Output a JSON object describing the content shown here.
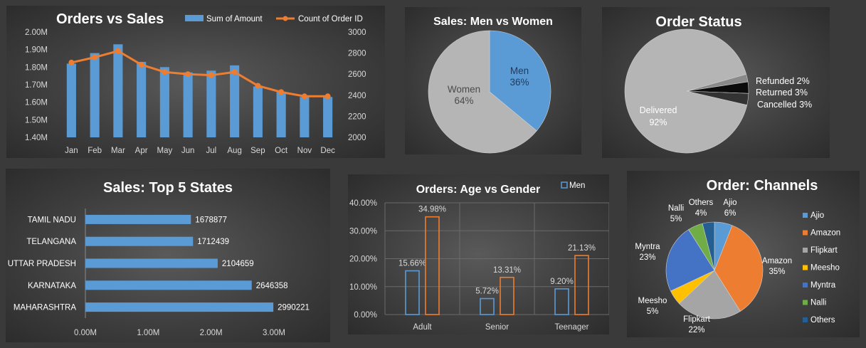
{
  "colors": {
    "blue": "#5b9bd5",
    "orange": "#ed7d31",
    "gray": "#a5a5a5",
    "yellow": "#ffc000",
    "royal": "#4472c4",
    "green": "#70ad47",
    "navy": "#255e91",
    "text": "#ffffff",
    "axis": "#d9d9d9",
    "grid": "#6a6a6a"
  },
  "chart_data": [
    {
      "id": "orders-vs-sales",
      "type": "bar",
      "title": "Orders vs Sales",
      "categories": [
        "Jan",
        "Feb",
        "Mar",
        "Apr",
        "May",
        "Jun",
        "Jul",
        "Aug",
        "Sep",
        "Oct",
        "Nov",
        "Dec"
      ],
      "series": [
        {
          "name": "Sum of Amount",
          "kind": "bar",
          "axis": "left",
          "values": [
            1.82,
            1.88,
            1.93,
            1.83,
            1.8,
            1.77,
            1.78,
            1.81,
            1.69,
            1.66,
            1.63,
            1.63
          ]
        },
        {
          "name": "Count of Order ID",
          "kind": "line",
          "axis": "right",
          "values": [
            2710,
            2760,
            2820,
            2690,
            2620,
            2600,
            2590,
            2620,
            2490,
            2430,
            2390,
            2390
          ]
        }
      ],
      "y_left": {
        "range": [
          1.4,
          2.0
        ],
        "ticks": [
          "1.40M",
          "1.50M",
          "1.60M",
          "1.70M",
          "1.80M",
          "1.90M",
          "2.00M"
        ]
      },
      "y_right": {
        "range": [
          2000,
          3000
        ],
        "ticks": [
          "2000",
          "2200",
          "2400",
          "2600",
          "2800",
          "3000"
        ]
      },
      "legend": "top",
      "grid": false
    },
    {
      "id": "sales-men-women",
      "type": "pie",
      "title": "Sales: Men vs Women",
      "slices": [
        {
          "label": "Men",
          "value": 36,
          "pct": "36%"
        },
        {
          "label": "Women",
          "value": 64,
          "pct": "64%"
        }
      ]
    },
    {
      "id": "order-status",
      "type": "pie",
      "title": "Order Status",
      "slices": [
        {
          "label": "Delivered",
          "value": 92,
          "pct": "92%"
        },
        {
          "label": "Refunded",
          "value": 2,
          "pct": "2%"
        },
        {
          "label": "Returned",
          "value": 3,
          "pct": "3%"
        },
        {
          "label": "Cancelled",
          "value": 3,
          "pct": "3%"
        }
      ]
    },
    {
      "id": "top-states",
      "type": "bar",
      "orientation": "horizontal",
      "title": "Sales: Top 5 States",
      "categories": [
        "MAHARASHTRA",
        "KARNATAKA",
        "UTTAR PRADESH",
        "TELANGANA",
        "TAMIL NADU"
      ],
      "values": [
        2990221,
        2646358,
        2104659,
        1712439,
        1678877
      ],
      "value_labels": [
        "2990221",
        "2646358",
        "2104659",
        "1712439",
        "1678877"
      ],
      "x_range": [
        0,
        3000000
      ],
      "x_ticks": [
        "0.00M",
        "1.00M",
        "2.00M",
        "3.00M"
      ],
      "grid": false
    },
    {
      "id": "age-vs-gender",
      "type": "bar",
      "title": "Orders: Age vs Gender",
      "categories": [
        "Adult",
        "Senior",
        "Teenager"
      ],
      "series": [
        {
          "name": "Men",
          "values": [
            15.66,
            5.72,
            9.2
          ],
          "labels": [
            "15.66%",
            "5.72%",
            "9.20%"
          ]
        },
        {
          "values": [
            34.98,
            13.31,
            21.13
          ],
          "labels": [
            "34.98%",
            "13.31%",
            "21.13%"
          ]
        }
      ],
      "y_range": [
        0,
        40
      ],
      "y_ticks": [
        "0.00%",
        "10.00%",
        "20.00%",
        "30.00%",
        "40.00%"
      ],
      "legend": "top-right",
      "grid": true
    },
    {
      "id": "order-channels",
      "type": "pie",
      "title": "Order: Channels",
      "slices": [
        {
          "label": "Ajio",
          "value": 6,
          "pct": "6%"
        },
        {
          "label": "Amazon",
          "value": 35,
          "pct": "35%"
        },
        {
          "label": "Flipkart",
          "value": 22,
          "pct": "22%"
        },
        {
          "label": "Meesho",
          "value": 5,
          "pct": "5%"
        },
        {
          "label": "Myntra",
          "value": 23,
          "pct": "23%"
        },
        {
          "label": "Nalli",
          "value": 5,
          "pct": "5%"
        },
        {
          "label": "Others",
          "value": 4,
          "pct": "4%"
        }
      ],
      "legend": [
        "Ajio",
        "Amazon",
        "Flipkart",
        "Meesho",
        "Myntra",
        "Nalli",
        "Others"
      ]
    }
  ]
}
